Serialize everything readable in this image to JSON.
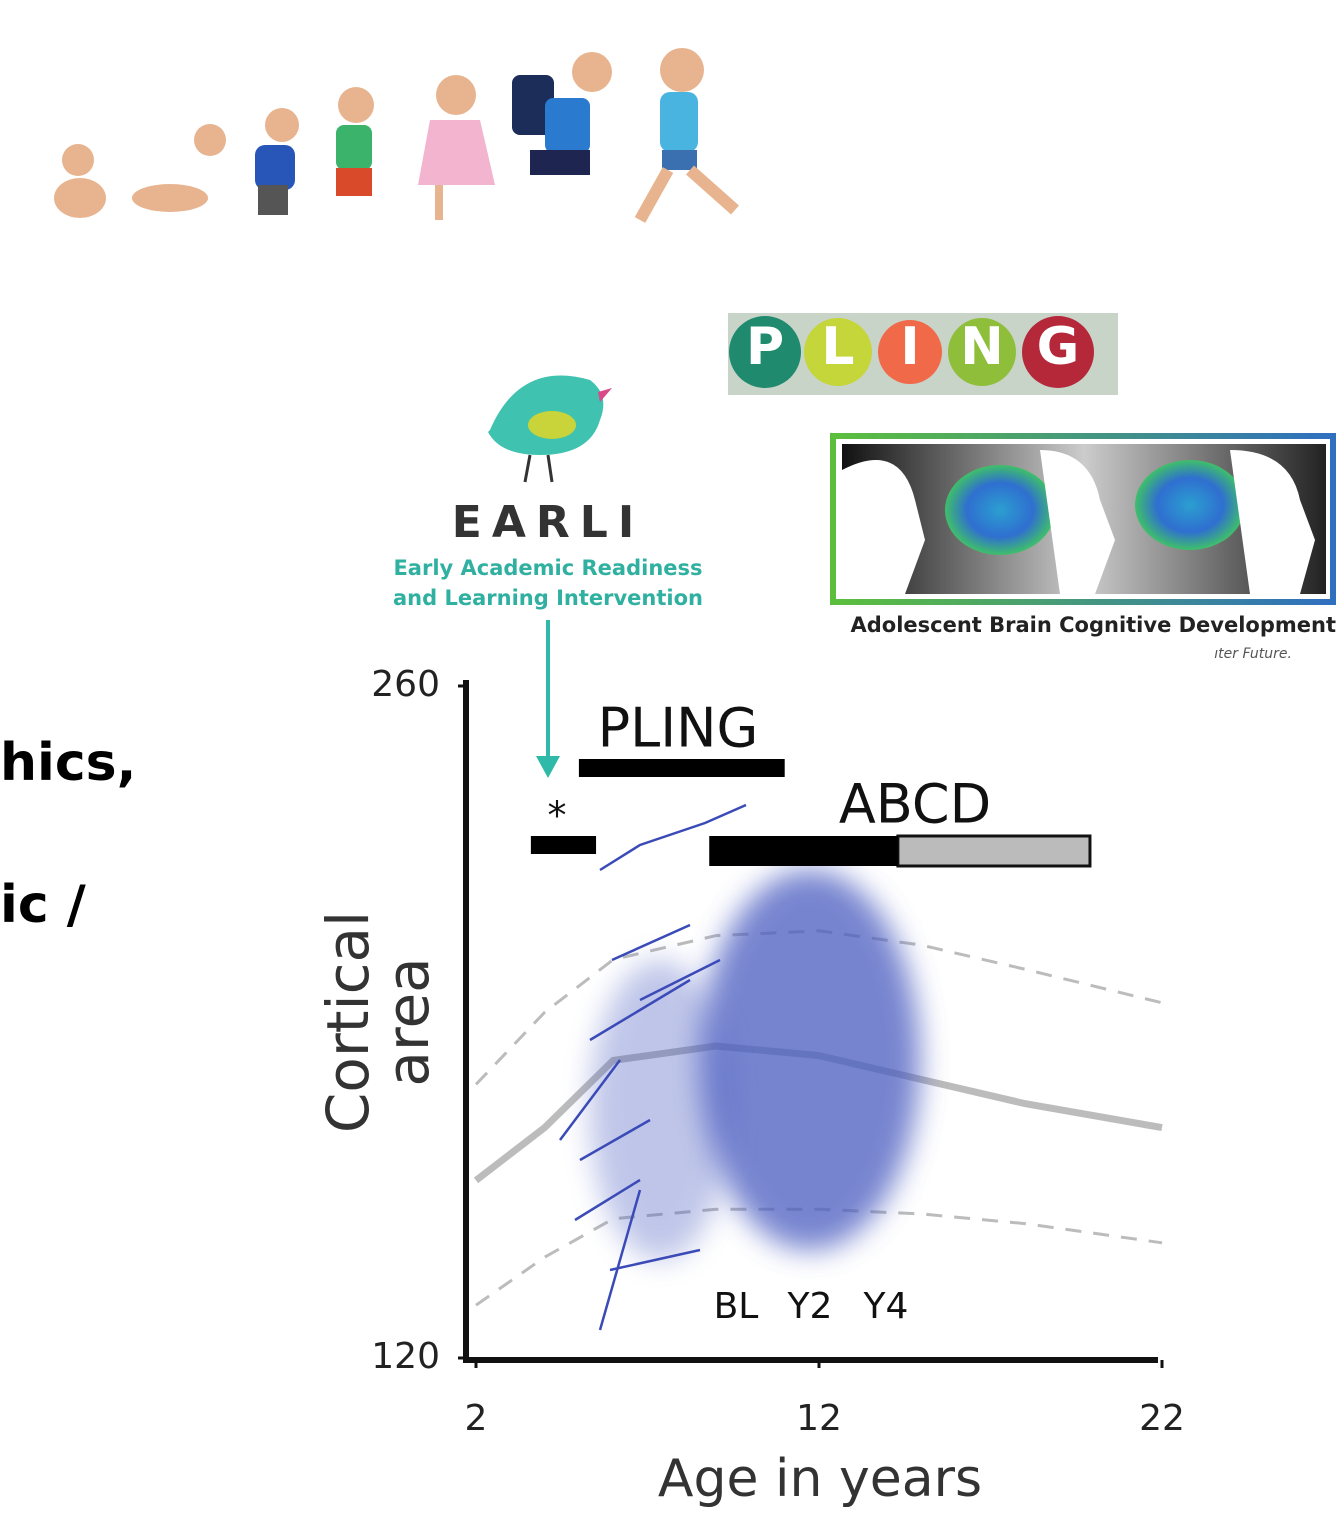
{
  "slide_text": [
    "hics,",
    "ic /"
  ],
  "earli": {
    "name": "EARLI",
    "subtitle": [
      "Early Academic Readiness",
      "and Learning Intervention"
    ]
  },
  "pling_logo": {
    "letters": [
      "P",
      "L",
      "I",
      "N",
      "G"
    ]
  },
  "abcd_logo": {
    "caption": "Adolescent Brain Cognitive Development",
    "tagline": "ıter Future."
  },
  "chart_data": {
    "type": "line",
    "xlabel": "Age in years",
    "ylabel": [
      "Cortical",
      "area"
    ],
    "xlim": [
      2,
      22
    ],
    "ylim": [
      120,
      260
    ],
    "xticks": [
      2,
      12,
      22
    ],
    "yticks": [
      120,
      260
    ],
    "x": [
      2,
      4,
      6,
      9,
      12,
      15,
      18,
      22
    ],
    "series": [
      {
        "color": "#b0b0b0",
        "style": "solid",
        "values": [
          157,
          168,
          182,
          185,
          183,
          178,
          173,
          168
        ]
      },
      {
        "color": "#b0b0b0",
        "style": "dashed",
        "values": [
          177,
          192,
          203,
          208,
          209,
          206,
          201,
          194
        ]
      },
      {
        "color": "#b0b0b0",
        "style": "dashed",
        "values": [
          131,
          141,
          149,
          151,
          151,
          150,
          148,
          144
        ]
      }
    ],
    "studies": [
      {
        "label": "*",
        "start": 3.6,
        "end": 5.5
      },
      {
        "label": "PLING",
        "start": 5.0,
        "end": 11.0
      },
      {
        "label": "ABCD",
        "start": 8.8,
        "end": 19.9,
        "black_end": 14.3
      }
    ],
    "wave_labels": [
      "BL",
      "Y2",
      "Y4"
    ]
  }
}
